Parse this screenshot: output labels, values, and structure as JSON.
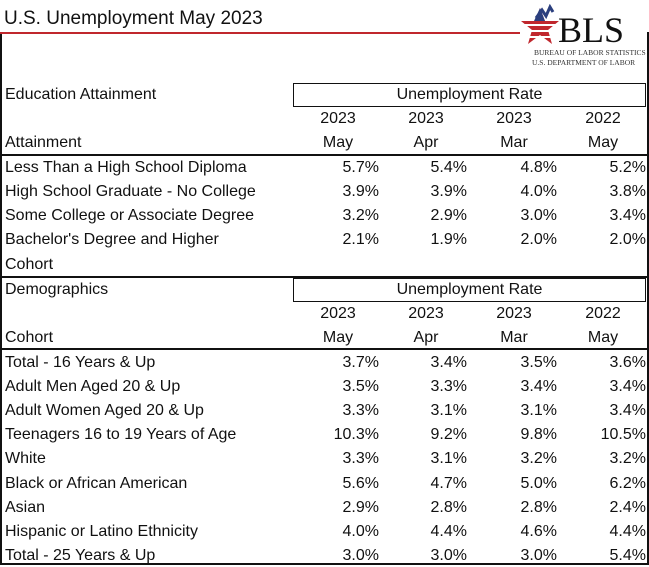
{
  "title": "U.S. Unemployment May 2023",
  "logo": {
    "text": "BLS",
    "line1": "BUREAU OF LABOR STATISTICS",
    "line2": "U.S. DEPARTMENT OF LABOR",
    "colors": {
      "red": "#c0272d",
      "blue": "#2b3f7e"
    }
  },
  "accent_color": "#c0272d",
  "columns": [
    {
      "year": "2023",
      "month": "May"
    },
    {
      "year": "2023",
      "month": "Apr"
    },
    {
      "year": "2023",
      "month": "Mar"
    },
    {
      "year": "2022",
      "month": "May"
    }
  ],
  "education": {
    "section": "Education Attainment",
    "group_header": "Unemployment Rate",
    "row_header": "Attainment",
    "rows": [
      {
        "label": "Less Than a High School Diploma",
        "values": [
          "5.7%",
          "5.4%",
          "4.8%",
          "5.2%"
        ]
      },
      {
        "label": "High School Graduate - No College",
        "values": [
          "3.9%",
          "3.9%",
          "4.0%",
          "3.8%"
        ]
      },
      {
        "label": "Some College or Associate Degree",
        "values": [
          "3.2%",
          "2.9%",
          "3.0%",
          "3.4%"
        ]
      },
      {
        "label": "Bachelor's Degree and Higher",
        "values": [
          "2.1%",
          "1.9%",
          "2.0%",
          "2.0%"
        ]
      }
    ],
    "footer": "Cohort"
  },
  "demographics": {
    "section": "Demographics",
    "group_header": "Unemployment Rate",
    "row_header": "Cohort",
    "rows": [
      {
        "label": "Total - 16 Years & Up",
        "values": [
          "3.7%",
          "3.4%",
          "3.5%",
          "3.6%"
        ]
      },
      {
        "label": "Adult Men Aged 20 & Up",
        "values": [
          "3.5%",
          "3.3%",
          "3.4%",
          "3.4%"
        ]
      },
      {
        "label": "Adult Women Aged 20 & Up",
        "values": [
          "3.3%",
          "3.1%",
          "3.1%",
          "3.4%"
        ]
      },
      {
        "label": "Teenagers 16 to 19 Years of Age",
        "values": [
          "10.3%",
          "9.2%",
          "9.8%",
          "10.5%"
        ]
      },
      {
        "label": "White",
        "values": [
          "3.3%",
          "3.1%",
          "3.2%",
          "3.2%"
        ]
      },
      {
        "label": "Black or African American",
        "values": [
          "5.6%",
          "4.7%",
          "5.0%",
          "6.2%"
        ]
      },
      {
        "label": "Asian",
        "values": [
          "2.9%",
          "2.8%",
          "2.8%",
          "2.4%"
        ]
      },
      {
        "label": "Hispanic or Latino Ethnicity",
        "values": [
          "4.0%",
          "4.4%",
          "4.6%",
          "4.4%"
        ]
      },
      {
        "label": "Total - 25 Years & Up",
        "values": [
          "3.0%",
          "3.0%",
          "3.0%",
          "5.4%"
        ]
      }
    ]
  }
}
